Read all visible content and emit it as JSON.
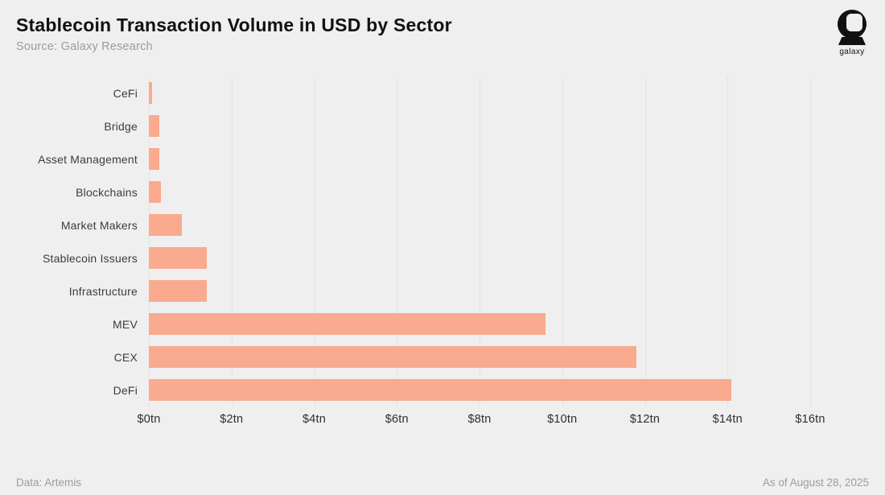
{
  "header": {
    "title": "Stablecoin Transaction Volume in USD by Sector",
    "source": "Source: Galaxy Research"
  },
  "logo": {
    "label": "galaxy"
  },
  "footer": {
    "left": "Data: Artemis",
    "right": "As of August 28, 2025"
  },
  "colors": {
    "background": "#EFEFEF",
    "bar": "#FAAA8F",
    "gridline": "#E3E3E3",
    "title": "#111111",
    "muted": "#9C9C9C",
    "label": "#3C3C3C",
    "tick": "#2E2E2E",
    "logo": "#111111"
  },
  "chart_data": {
    "type": "bar",
    "orientation": "horizontal",
    "title": "Stablecoin Transaction Volume in USD by Sector",
    "categories": [
      "CeFi",
      "Bridge",
      "Asset Management",
      "Blockchains",
      "Market Makers",
      "Stablecoin Issuers",
      "Infrastructure",
      "MEV",
      "CEX",
      "DeFi"
    ],
    "values": [
      0.08,
      0.25,
      0.26,
      0.3,
      0.8,
      1.4,
      1.4,
      9.6,
      11.8,
      14.1
    ],
    "unit": "trillion USD",
    "xlabel": "",
    "ylabel": "",
    "xlim": [
      0,
      16
    ],
    "x_tick_values": [
      0,
      2,
      4,
      6,
      8,
      10,
      12,
      14,
      16
    ],
    "x_tick_labels": [
      "$0tn",
      "$2tn",
      "$4tn",
      "$6tn",
      "$8tn",
      "$10tn",
      "$12tn",
      "$14tn",
      "$16tn"
    ],
    "grid": "vertical",
    "legend": "none"
  }
}
